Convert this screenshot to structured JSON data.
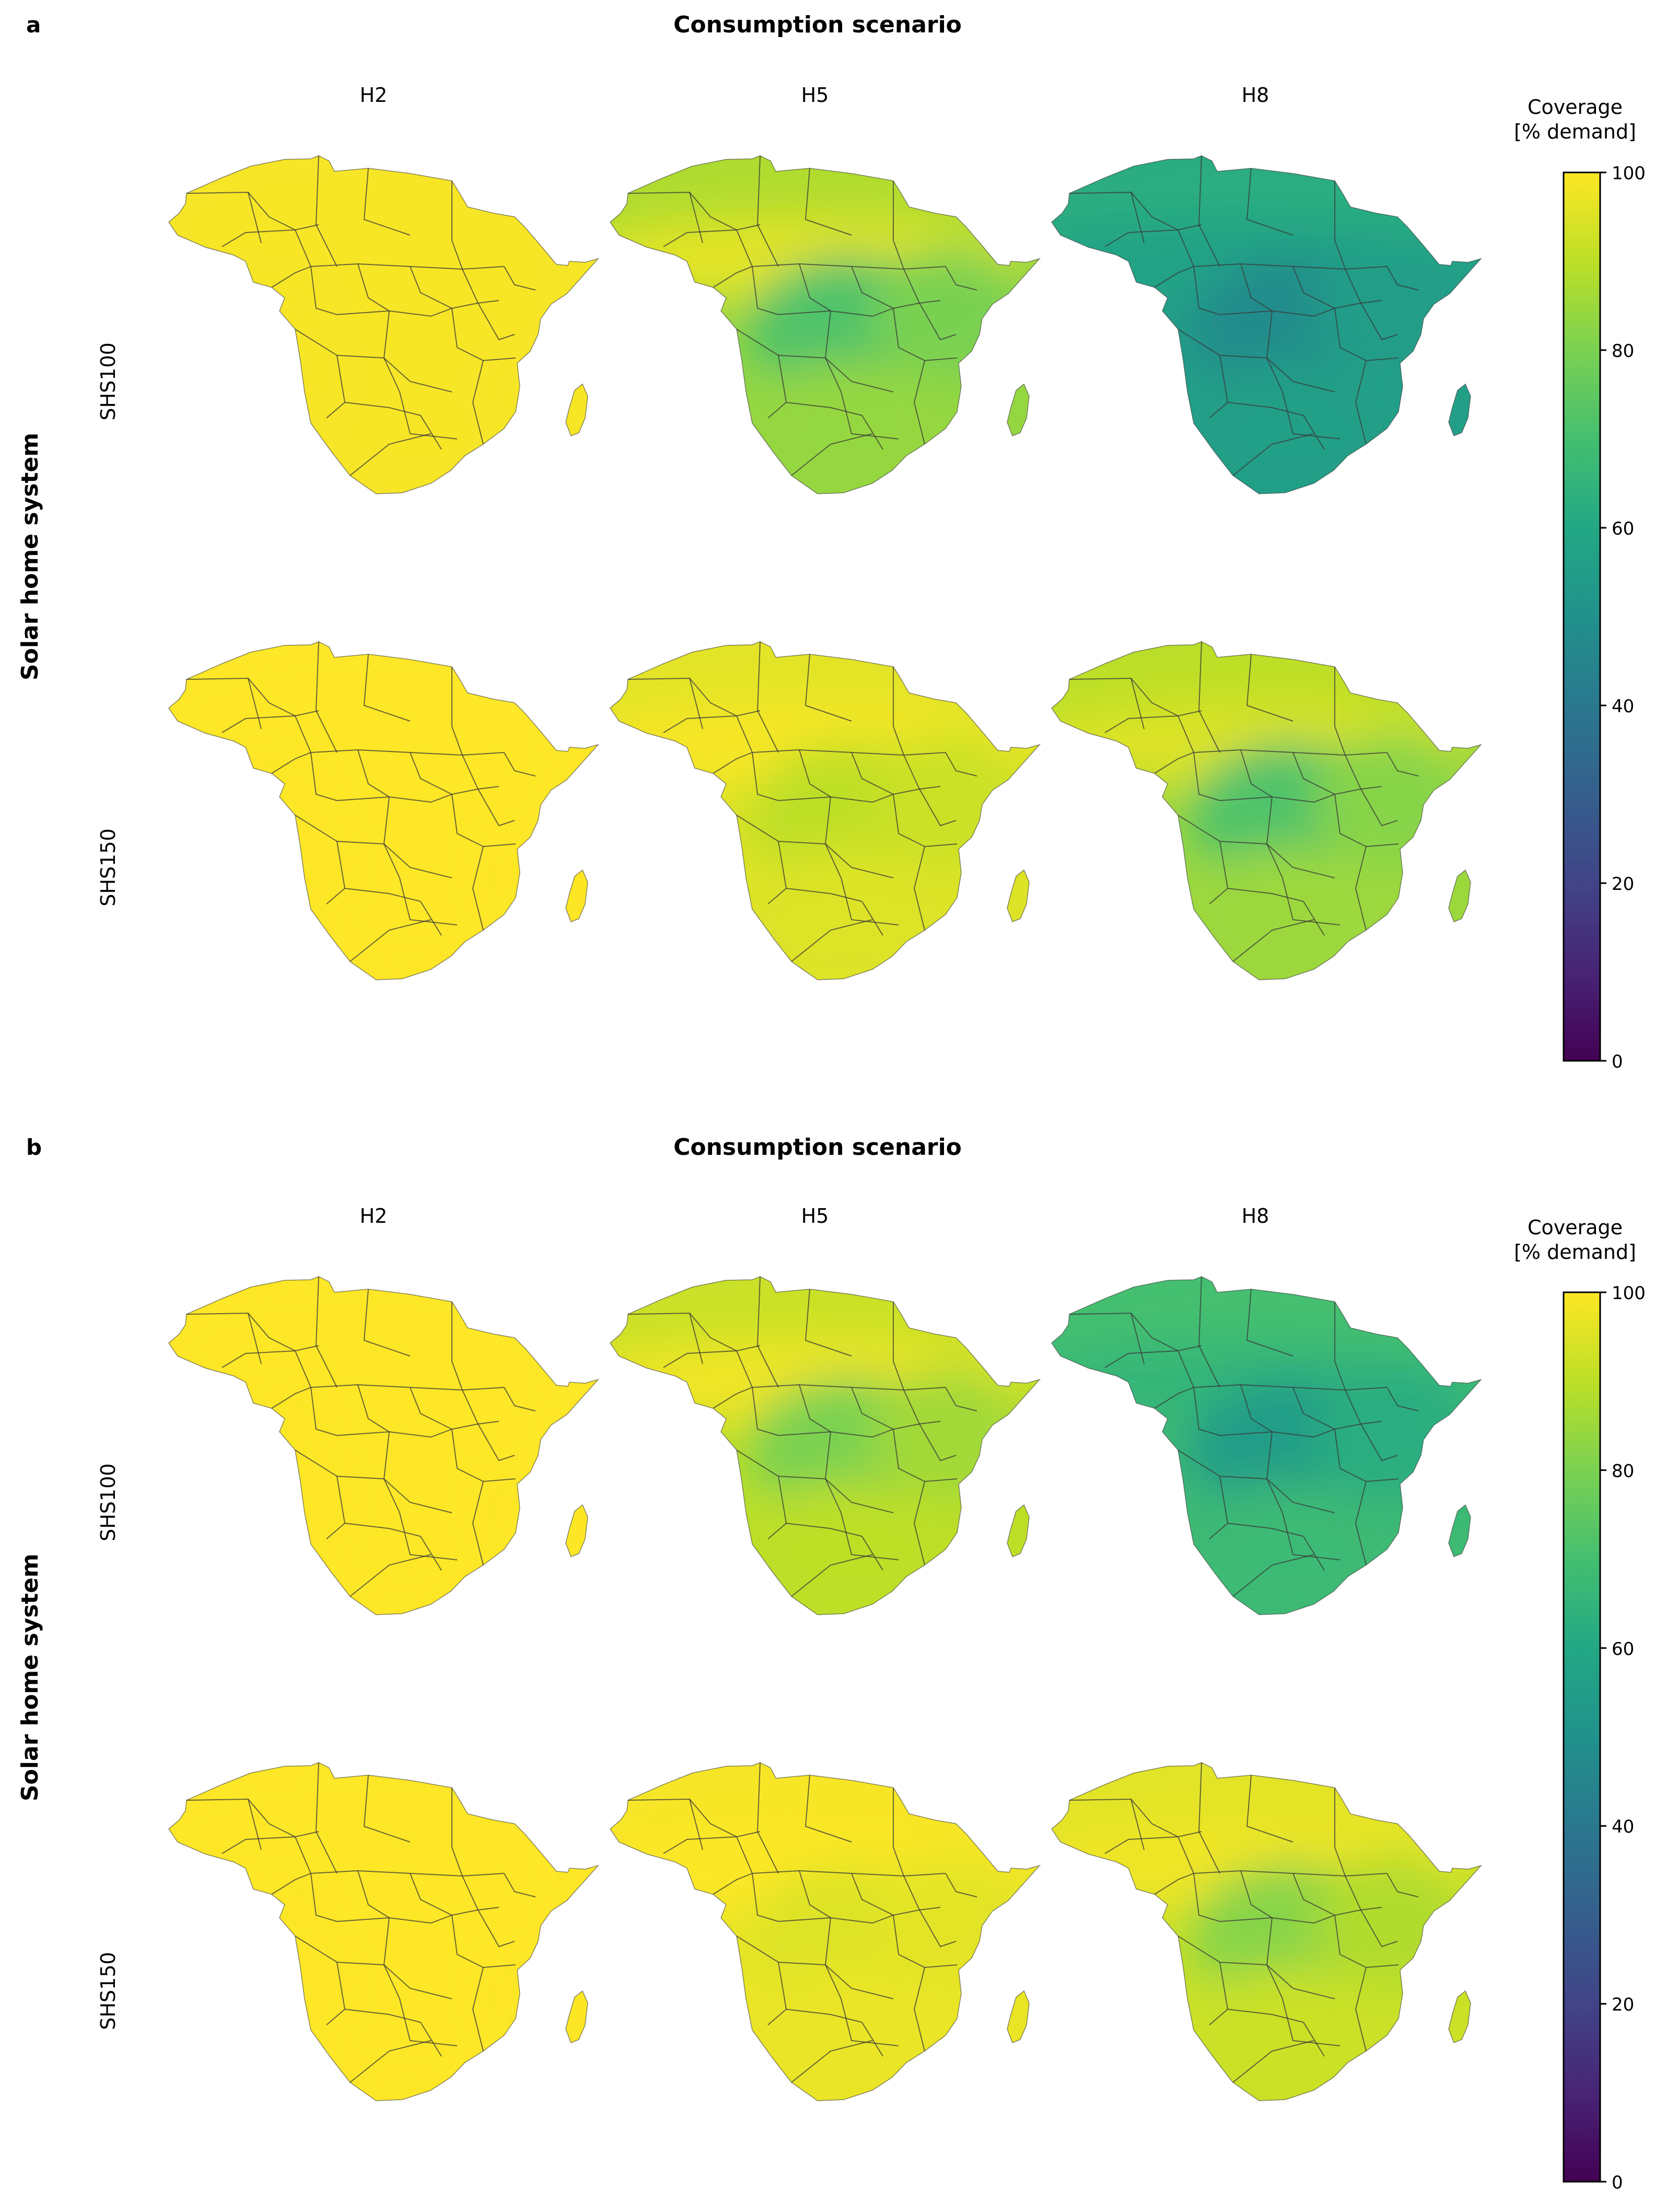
{
  "colors": {
    "colormap": "viridis",
    "map_border": "#3a3a3a",
    "background": "#ffffff"
  },
  "chart_data": [
    {
      "type": "heatmap",
      "panel_label": "a",
      "title": "Consumption scenario",
      "row_title": "Solar home system",
      "columns": [
        "H2",
        "H5",
        "H8"
      ],
      "rows": [
        "SHS100",
        "SHS150"
      ],
      "colorbar": {
        "label_line1": "Coverage",
        "label_line2": "[% demand]",
        "vmin": 0,
        "vmax": 100,
        "ticks": [
          0,
          20,
          40,
          60,
          80,
          100
        ]
      },
      "maps": [
        {
          "row": "SHS100",
          "col": "H2",
          "north": 99,
          "sahel": 99,
          "center": 99,
          "south": 99,
          "east": 99
        },
        {
          "row": "SHS100",
          "col": "H5",
          "north": 88,
          "sahel": 96,
          "center": 72,
          "south": 84,
          "east": 80
        },
        {
          "row": "SHS100",
          "col": "H8",
          "north": 62,
          "sahel": 58,
          "center": 48,
          "south": 56,
          "east": 55
        },
        {
          "row": "SHS150",
          "col": "H2",
          "north": 100,
          "sahel": 100,
          "center": 100,
          "south": 100,
          "east": 100
        },
        {
          "row": "SHS150",
          "col": "H5",
          "north": 96,
          "sahel": 99,
          "center": 90,
          "south": 95,
          "east": 92
        },
        {
          "row": "SHS150",
          "col": "H8",
          "north": 90,
          "sahel": 95,
          "center": 72,
          "south": 85,
          "east": 82
        }
      ]
    },
    {
      "type": "heatmap",
      "panel_label": "b",
      "title": "Consumption scenario",
      "row_title": "Solar home system",
      "columns": [
        "H2",
        "H5",
        "H8"
      ],
      "rows": [
        "SHS100",
        "SHS150"
      ],
      "colorbar": {
        "label_line1": "Coverage",
        "label_line2": "[% demand]",
        "vmin": 0,
        "vmax": 100,
        "ticks": [
          0,
          20,
          40,
          60,
          80,
          100
        ]
      },
      "maps": [
        {
          "row": "SHS100",
          "col": "H2",
          "north": 100,
          "sahel": 100,
          "center": 100,
          "south": 100,
          "east": 100
        },
        {
          "row": "SHS100",
          "col": "H5",
          "north": 92,
          "sahel": 98,
          "center": 80,
          "south": 90,
          "east": 86
        },
        {
          "row": "SHS100",
          "col": "H8",
          "north": 70,
          "sahel": 66,
          "center": 55,
          "south": 68,
          "east": 62
        },
        {
          "row": "SHS150",
          "col": "H2",
          "north": 100,
          "sahel": 100,
          "center": 100,
          "south": 100,
          "east": 100
        },
        {
          "row": "SHS150",
          "col": "H5",
          "north": 99,
          "sahel": 100,
          "center": 95,
          "south": 97,
          "east": 96
        },
        {
          "row": "SHS150",
          "col": "H8",
          "north": 96,
          "sahel": 98,
          "center": 82,
          "south": 92,
          "east": 88
        }
      ]
    }
  ]
}
